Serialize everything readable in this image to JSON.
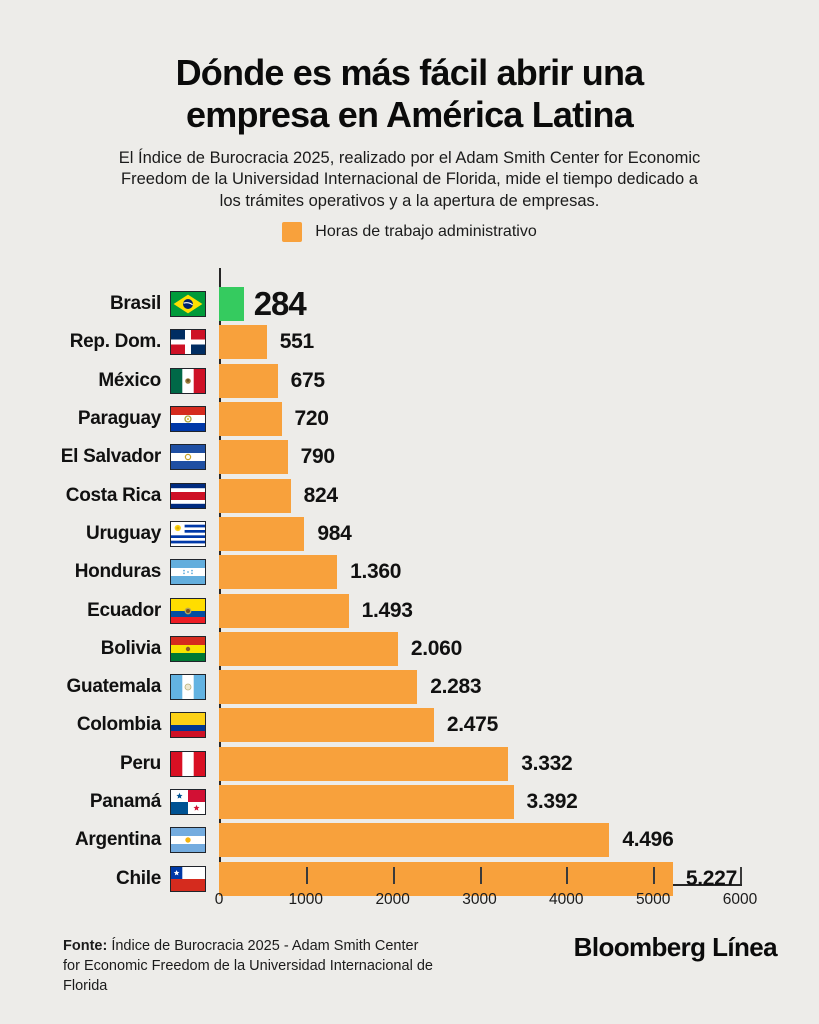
{
  "header": {
    "title": "Dónde es más fácil abrir una empresa en América Latina",
    "subtitle": "El Índice de Burocracia 2025, realizado por el Adam Smith Center for Economic Freedom de la Universidad Internacional de Florida, mide el tiempo dedicado a los trámites operativos y a la apertura de empresas."
  },
  "legend": {
    "label": "Horas de trabajo administrativo",
    "swatch_color": "#F8A13C"
  },
  "chart_data": {
    "type": "bar",
    "orientation": "horizontal",
    "title": "Dónde es más fácil abrir una empresa en América Latina",
    "series_name": "Horas de trabajo administrativo",
    "xlabel": "",
    "ylabel": "",
    "xlim": [
      0,
      6000
    ],
    "x_ticks": [
      0,
      1000,
      2000,
      3000,
      4000,
      5000,
      6000
    ],
    "grid": false,
    "legend_position": "top",
    "categories": [
      "Brasil",
      "Rep. Dom.",
      "México",
      "Paraguay",
      "El Salvador",
      "Costa Rica",
      "Uruguay",
      "Honduras",
      "Ecuador",
      "Bolivia",
      "Guatemala",
      "Colombia",
      "Peru",
      "Panamá",
      "Argentina",
      "Chile"
    ],
    "values": [
      284,
      551,
      675,
      720,
      790,
      824,
      984,
      1360,
      1493,
      2060,
      2283,
      2475,
      3332,
      3392,
      4496,
      5227
    ],
    "value_labels": [
      "284",
      "551",
      "675",
      "720",
      "790",
      "824",
      "984",
      "1.360",
      "1.493",
      "2.060",
      "2.283",
      "2.475",
      "3.332",
      "3.392",
      "4.496",
      "5.227"
    ],
    "flags": [
      "brasil",
      "rep-dom",
      "mexico",
      "paraguay",
      "el-salvador",
      "costa-rica",
      "uruguay",
      "honduras",
      "ecuador",
      "bolivia",
      "guatemala",
      "colombia",
      "peru",
      "panama",
      "argentina",
      "chile"
    ],
    "bar_colors": {
      "default": "#F8A13C",
      "highlight": "#35CB5F"
    },
    "highlight_index": 0
  },
  "footer": {
    "source_label": "Fonte:",
    "source_text": " Índice de Burocracia 2025 - Adam Smith Center for Economic Freedom de la Universidad Internacional de Florida",
    "brand": "Bloomberg Línea"
  },
  "colors": {
    "background": "#EDECE9",
    "bar_orange": "#F8A13C",
    "bar_green": "#35CB5F",
    "text": "#111111",
    "axis": "#262626"
  }
}
